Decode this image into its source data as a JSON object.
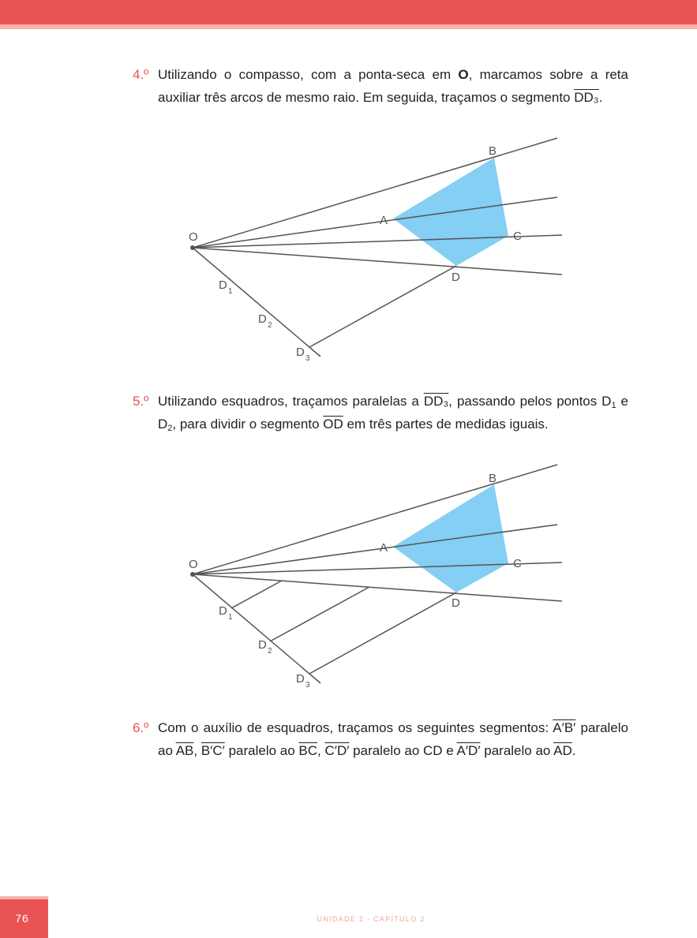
{
  "header": {
    "accent_color": "#ea5353",
    "stripe_color": "#f6b3ad"
  },
  "steps": [
    {
      "number": "4.º",
      "t1": "Utilizando o compasso, com a ponta-seca em ",
      "t2": "O",
      "t3": ", marcamos sobre a reta auxiliar três arcos de mesmo raio. Em seguida, traçamos o segmento ",
      "t4": "DD₃",
      "t5": "."
    },
    {
      "number": "5.º",
      "t1": "Utilizando esquadros, traçamos paralelas a ",
      "t2": "DD₃",
      "t3": ", passando pelos pontos D",
      "t4": "1",
      "t5": " e D",
      "t6": "2",
      "t7": ", para dividir o segmento ",
      "t8": "OD",
      "t9": " em três partes de medidas iguais."
    },
    {
      "number": "6.º",
      "t1": "Com o auxílio de esquadros, traçamos os seguintes segmentos: ",
      "t2": "A′B′",
      "t3": " paralelo ao ",
      "t4": "AB",
      "t5": ", ",
      "t6": "B′C′",
      "t7": " paralelo ao ",
      "t8": "BC",
      "t9": ", ",
      "t10": "C′D′",
      "t11": " paralelo ao CD e ",
      "t12": "A′D′",
      "t13": " paralelo ao ",
      "t14": "AD",
      "t15": "."
    }
  ],
  "figure_labels": {
    "O": "O",
    "A": "A",
    "B": "B",
    "C": "C",
    "D": "D",
    "D1": "D",
    "D1_sub": "1",
    "D2": "D",
    "D2_sub": "2",
    "D3": "D",
    "D3_sub": "3"
  },
  "figure_colors": {
    "polygon_fill": "#84cff3",
    "line": "#545454"
  },
  "footer": {
    "page_number": "76",
    "chapter": "UNIDADE 2 - CAPÍTULO 2"
  }
}
